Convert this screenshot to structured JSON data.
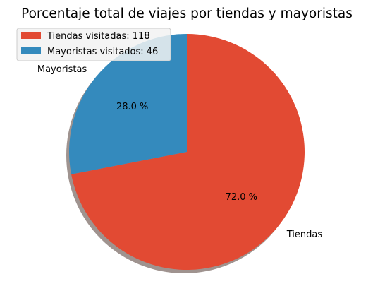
{
  "chart_data": {
    "type": "pie",
    "title": "Porcentaje total de viajes por tiendas y mayoristas",
    "slices": [
      {
        "label": "Tiendas",
        "value": 118,
        "percent_label": "72.0 %",
        "legend_label": "Tiendas visitadas: 118",
        "color": "#E24A33"
      },
      {
        "label": "Mayoristas",
        "value": 46,
        "percent_label": "28.0 %",
        "legend_label": "Mayoristas visitados: 46",
        "color": "#348ABD"
      }
    ],
    "start_angle_deg": 90,
    "direction": "clockwise",
    "shadow": true,
    "legend_position": "upper-left"
  }
}
